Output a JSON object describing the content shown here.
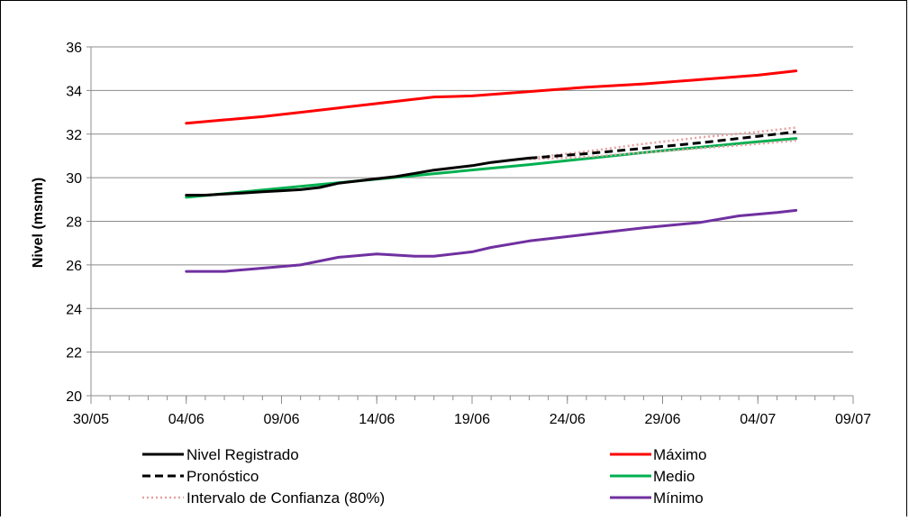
{
  "chart_data": {
    "type": "line",
    "title": "",
    "xlabel": "",
    "ylabel": "Nivel (msnm)",
    "ylim": [
      20,
      36
    ],
    "yticks": [
      "20",
      "22",
      "24",
      "26",
      "28",
      "30",
      "32",
      "34",
      "36"
    ],
    "xlim": [
      "2024-05-30",
      "2024-07-09"
    ],
    "xticks": [
      "30/05",
      "04/06",
      "09/06",
      "14/06",
      "19/06",
      "24/06",
      "29/06",
      "04/07",
      "09/07"
    ],
    "grid": "horizontal",
    "legend_position": "bottom",
    "series": [
      {
        "name": "Nivel Registrado",
        "color": "#000000",
        "style": "solid",
        "x": [
          "2024-06-04",
          "2024-06-05",
          "2024-06-06",
          "2024-06-07",
          "2024-06-08",
          "2024-06-09",
          "2024-06-10",
          "2024-06-11",
          "2024-06-12",
          "2024-06-13",
          "2024-06-14",
          "2024-06-15",
          "2024-06-16",
          "2024-06-17",
          "2024-06-18",
          "2024-06-19",
          "2024-06-20",
          "2024-06-21",
          "2024-06-22"
        ],
        "y": [
          29.2,
          29.2,
          29.25,
          29.3,
          29.35,
          29.4,
          29.45,
          29.55,
          29.75,
          29.85,
          29.95,
          30.05,
          30.2,
          30.35,
          30.45,
          30.55,
          30.7,
          30.8,
          30.9
        ]
      },
      {
        "name": "Pronóstico",
        "color": "#000000",
        "style": "dashed",
        "x": [
          "2024-06-22",
          "2024-06-25",
          "2024-06-28",
          "2024-07-01",
          "2024-07-04",
          "2024-07-06"
        ],
        "y": [
          30.9,
          31.1,
          31.35,
          31.6,
          31.9,
          32.1
        ]
      },
      {
        "name": "Intervalo de Confianza (80%)",
        "color": "#e6a0a0",
        "style": "dotted",
        "x": [
          "2024-06-22",
          "2024-06-25",
          "2024-06-28",
          "2024-07-01",
          "2024-07-04",
          "2024-07-06"
        ],
        "y": [
          30.9,
          31.2,
          31.55,
          31.85,
          32.1,
          32.3
        ]
      },
      {
        "name": "",
        "color": "#e6a0a0",
        "style": "dotted",
        "x": [
          "2024-06-22",
          "2024-06-25",
          "2024-06-28",
          "2024-07-01",
          "2024-07-04",
          "2024-07-06"
        ],
        "y": [
          30.85,
          30.95,
          31.15,
          31.35,
          31.55,
          31.7
        ]
      },
      {
        "name": "Máximo",
        "color": "#ff0000",
        "style": "solid",
        "x": [
          "2024-06-04",
          "2024-06-06",
          "2024-06-08",
          "2024-06-10",
          "2024-06-12",
          "2024-06-14",
          "2024-06-16",
          "2024-06-17",
          "2024-06-19",
          "2024-06-22",
          "2024-06-25",
          "2024-06-28",
          "2024-07-01",
          "2024-07-04",
          "2024-07-06"
        ],
        "y": [
          32.5,
          32.65,
          32.8,
          33.0,
          33.2,
          33.4,
          33.6,
          33.7,
          33.75,
          33.95,
          34.15,
          34.3,
          34.5,
          34.7,
          34.9
        ]
      },
      {
        "name": "Medio",
        "color": "#00b050",
        "style": "solid",
        "x": [
          "2024-06-04",
          "2024-06-10",
          "2024-06-16",
          "2024-06-22",
          "2024-06-28",
          "2024-07-04",
          "2024-07-06"
        ],
        "y": [
          29.1,
          29.6,
          30.1,
          30.6,
          31.15,
          31.65,
          31.8
        ]
      },
      {
        "name": "Mínimo",
        "color": "#7030a0",
        "style": "solid",
        "x": [
          "2024-06-04",
          "2024-06-06",
          "2024-06-08",
          "2024-06-10",
          "2024-06-12",
          "2024-06-14",
          "2024-06-16",
          "2024-06-17",
          "2024-06-19",
          "2024-06-20",
          "2024-06-22",
          "2024-06-25",
          "2024-06-28",
          "2024-07-01",
          "2024-07-03",
          "2024-07-05",
          "2024-07-06"
        ],
        "y": [
          25.7,
          25.7,
          25.85,
          26.0,
          26.35,
          26.5,
          26.4,
          26.4,
          26.6,
          26.8,
          27.1,
          27.4,
          27.7,
          27.95,
          28.25,
          28.4,
          28.5
        ]
      }
    ]
  },
  "legend": {
    "left": [
      {
        "label": "Nivel Registrado",
        "color": "#000000",
        "style": "solid"
      },
      {
        "label": "Pronóstico",
        "color": "#000000",
        "style": "dashed"
      },
      {
        "label": "Intervalo de Confianza (80%)",
        "color": "#e6a0a0",
        "style": "dotted"
      }
    ],
    "right": [
      {
        "label": "Máximo",
        "color": "#ff0000",
        "style": "solid"
      },
      {
        "label": "Medio",
        "color": "#00b050",
        "style": "solid"
      },
      {
        "label": "Mínimo",
        "color": "#7030a0",
        "style": "solid"
      }
    ]
  }
}
